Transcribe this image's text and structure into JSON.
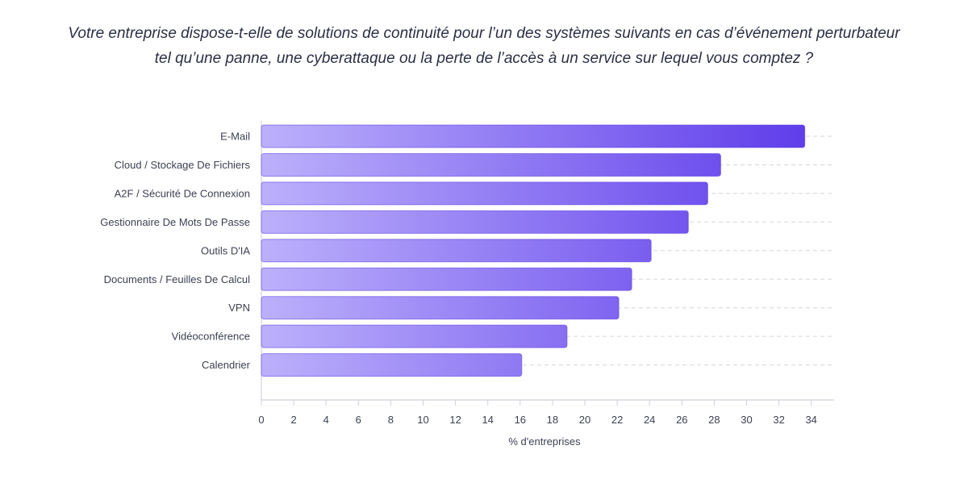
{
  "chart_data": {
    "type": "bar",
    "orientation": "horizontal",
    "title": [
      "Votre entreprise dispose-t-elle de solutions de continuité pour l’un des systèmes suivants en cas d’événement perturbateur",
      "tel qu’une panne, une cyberattaque ou la perte de l’accès à un service sur lequel vous comptez ?"
    ],
    "categories": [
      "E-Mail",
      "Cloud / Stockage De Fichiers",
      "A2F / Sécurité De Connexion",
      "Gestionnaire De Mots De Passe",
      "Outils D'IA",
      "Documents / Feuilles De Calcul",
      "VPN",
      "Vidéoconférence",
      "Calendrier"
    ],
    "values": [
      33.6,
      28.4,
      27.6,
      26.4,
      24.1,
      22.9,
      22.1,
      18.9,
      16.1
    ],
    "xlabel": "% d'entreprises",
    "ylabel": "",
    "xlim": [
      0,
      35
    ],
    "xticks": [
      0,
      2,
      4,
      6,
      8,
      10,
      12,
      14,
      16,
      18,
      20,
      22,
      24,
      26,
      28,
      30,
      32,
      34
    ],
    "grid": "horizontal dashed",
    "legend": "none",
    "colors": {
      "bar_light": "#bcb0fb",
      "bar_dark": "#5f3dea",
      "bar_stroke": "#5836e0",
      "grid": "#d4d6de",
      "axis": "#cfd1d9",
      "text": "#3d4152"
    }
  }
}
